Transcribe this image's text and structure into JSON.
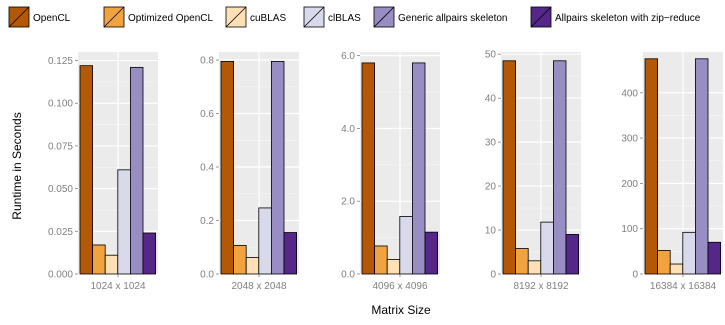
{
  "chart_data": {
    "type": "bar",
    "xlabel": "Matrix Size",
    "ylabel": "Runtime in Seconds",
    "legend_position": "top",
    "grid": true,
    "series": [
      {
        "name": "OpenCL",
        "color": "#b35806"
      },
      {
        "name": "Optimized OpenCL",
        "color": "#f1a340"
      },
      {
        "name": "cuBLAS",
        "color": "#fee0b6"
      },
      {
        "name": "clBLAS",
        "color": "#d8daeb"
      },
      {
        "name": "Generic allpairs skeleton",
        "color": "#998ec3"
      },
      {
        "name": "Allpairs skeleton with zip−reduce",
        "color": "#542788"
      }
    ],
    "panels": [
      {
        "category": "1024 x 1024",
        "ylim": [
          0,
          0.13
        ],
        "yticks": [
          "0.000",
          "0.025",
          "0.050",
          "0.075",
          "0.100",
          "0.125"
        ],
        "ytick_values": [
          0,
          0.025,
          0.05,
          0.075,
          0.1,
          0.125
        ],
        "values": [
          0.122,
          0.017,
          0.011,
          0.061,
          0.121,
          0.024
        ]
      },
      {
        "category": "2048 x 2048",
        "ylim": [
          0,
          0.83
        ],
        "yticks": [
          "0.0",
          "0.2",
          "0.4",
          "0.6",
          "0.8"
        ],
        "ytick_values": [
          0,
          0.2,
          0.4,
          0.6,
          0.8
        ],
        "values": [
          0.795,
          0.107,
          0.062,
          0.247,
          0.795,
          0.155
        ]
      },
      {
        "category": "4096 x 4096",
        "ylim": [
          0,
          6.1
        ],
        "yticks": [
          "0.0",
          "2.0",
          "4.0",
          "6.0"
        ],
        "ytick_values": [
          0,
          2,
          4,
          6
        ],
        "values": [
          5.8,
          0.77,
          0.4,
          1.58,
          5.8,
          1.15
        ]
      },
      {
        "category": "8192 x 8192",
        "ylim": [
          0,
          50.5
        ],
        "yticks": [
          "0",
          "10",
          "20",
          "30",
          "40",
          "50"
        ],
        "ytick_values": [
          0,
          10,
          20,
          30,
          40,
          50
        ],
        "values": [
          48.5,
          5.8,
          3.0,
          11.8,
          48.5,
          9.0
        ]
      },
      {
        "category": "16384 x 16384",
        "ylim": [
          0,
          490
        ],
        "yticks": [
          "0",
          "100",
          "200",
          "300",
          "400"
        ],
        "ytick_values": [
          0,
          100,
          200,
          300,
          400
        ],
        "values": [
          475,
          52,
          22,
          92,
          475,
          70
        ]
      }
    ]
  }
}
